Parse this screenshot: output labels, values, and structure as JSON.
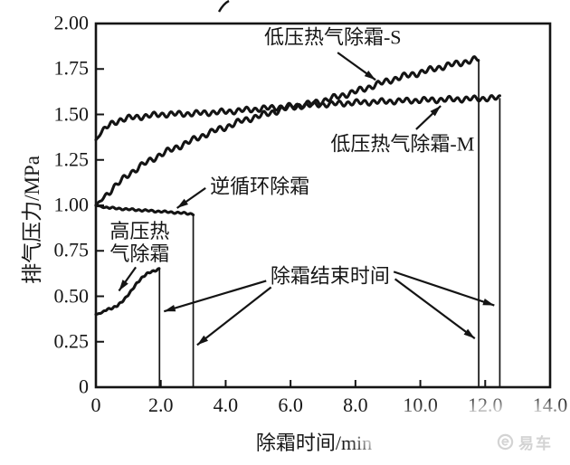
{
  "watermark": {
    "brand": "易车"
  },
  "chart_data": {
    "type": "line",
    "title": "",
    "xlabel": "除霜时间/min",
    "ylabel": "排气压力/MPa",
    "xlim": [
      0,
      14
    ],
    "ylim": [
      0,
      2.0
    ],
    "grid": false,
    "legend_position": "none",
    "line_color": "#141414",
    "x_ticks": [
      {
        "v": 0,
        "label": "0"
      },
      {
        "v": 2,
        "label": "2.0"
      },
      {
        "v": 4,
        "label": "4.0"
      },
      {
        "v": 6,
        "label": "6.0"
      },
      {
        "v": 8,
        "label": "8.0"
      },
      {
        "v": 10,
        "label": "10.0"
      },
      {
        "v": 12,
        "label": "12.0"
      },
      {
        "v": 14,
        "label": "14.0"
      }
    ],
    "y_ticks": [
      {
        "v": 0,
        "label": "0"
      },
      {
        "v": 0.25,
        "label": "0.25"
      },
      {
        "v": 0.5,
        "label": "0.50"
      },
      {
        "v": 0.75,
        "label": "0.75"
      },
      {
        "v": 1.0,
        "label": "1.00"
      },
      {
        "v": 1.25,
        "label": "1.25"
      },
      {
        "v": 1.5,
        "label": "1.50"
      },
      {
        "v": 1.75,
        "label": "1.75"
      },
      {
        "v": 2.0,
        "label": "2.00"
      }
    ],
    "series": [
      {
        "id": "low-pressure-hot-gas-s",
        "name": "低压热气除霜-S",
        "defrost_end_time_min": 11.8,
        "end_pressure_mpa": 1.8,
        "drop_to_zero": true,
        "wiggle_amp": 0.013,
        "wiggle_wavelength": 0.27,
        "points": [
          [
            0,
            1.0
          ],
          [
            0.5,
            1.09
          ],
          [
            1,
            1.17
          ],
          [
            1.5,
            1.23
          ],
          [
            2,
            1.28
          ],
          [
            2.5,
            1.32
          ],
          [
            3,
            1.36
          ],
          [
            3.5,
            1.4
          ],
          [
            4,
            1.43
          ],
          [
            4.5,
            1.465
          ],
          [
            5,
            1.49
          ],
          [
            5.5,
            1.515
          ],
          [
            6,
            1.54
          ],
          [
            6.5,
            1.555
          ],
          [
            7,
            1.575
          ],
          [
            7.5,
            1.6
          ],
          [
            8,
            1.625
          ],
          [
            8.5,
            1.655
          ],
          [
            9,
            1.685
          ],
          [
            9.5,
            1.71
          ],
          [
            10,
            1.73
          ],
          [
            10.5,
            1.755
          ],
          [
            11,
            1.775
          ],
          [
            11.4,
            1.79
          ],
          [
            11.8,
            1.805
          ]
        ]
      },
      {
        "id": "low-pressure-hot-gas-m",
        "name": "低压热气除霜-M",
        "defrost_end_time_min": 12.45,
        "end_pressure_mpa": 1.59,
        "drop_to_zero": true,
        "wiggle_amp": 0.012,
        "wiggle_wavelength": 0.26,
        "points": [
          [
            0,
            1.36
          ],
          [
            0.25,
            1.42
          ],
          [
            0.5,
            1.45
          ],
          [
            0.75,
            1.47
          ],
          [
            1,
            1.48
          ],
          [
            1.5,
            1.49
          ],
          [
            2,
            1.5
          ],
          [
            3,
            1.505
          ],
          [
            4,
            1.515
          ],
          [
            5,
            1.53
          ],
          [
            6,
            1.545
          ],
          [
            7,
            1.555
          ],
          [
            8,
            1.565
          ],
          [
            9,
            1.572
          ],
          [
            10,
            1.578
          ],
          [
            11,
            1.583
          ],
          [
            12,
            1.588
          ],
          [
            12.45,
            1.59
          ]
        ]
      },
      {
        "id": "reverse-cycle",
        "name": "逆循环除霜",
        "defrost_end_time_min": 3.0,
        "end_pressure_mpa": 0.95,
        "drop_to_zero": true,
        "wiggle_amp": 0.004,
        "wiggle_wavelength": 0.2,
        "points": [
          [
            0,
            1.0
          ],
          [
            0.25,
            0.99
          ],
          [
            0.5,
            0.985
          ],
          [
            1,
            0.978
          ],
          [
            1.5,
            0.972
          ],
          [
            2,
            0.966
          ],
          [
            2.5,
            0.96
          ],
          [
            3,
            0.952
          ]
        ]
      },
      {
        "id": "high-pressure-hot-gas",
        "name": "高压热气除霜",
        "defrost_end_time_min": 1.96,
        "end_pressure_mpa": 0.65,
        "drop_to_zero": true,
        "wiggle_amp": 0.004,
        "wiggle_wavelength": 0.17,
        "points": [
          [
            0,
            0.4
          ],
          [
            0.2,
            0.41
          ],
          [
            0.35,
            0.43
          ],
          [
            0.5,
            0.435
          ],
          [
            0.65,
            0.445
          ],
          [
            0.8,
            0.47
          ],
          [
            0.95,
            0.5
          ],
          [
            1.1,
            0.53
          ],
          [
            1.25,
            0.57
          ],
          [
            1.4,
            0.6
          ],
          [
            1.55,
            0.62
          ],
          [
            1.7,
            0.635
          ],
          [
            1.96,
            0.65
          ]
        ]
      }
    ],
    "annotations": [
      {
        "id": "label-low-pressure-s",
        "lines": [
          "低压热气除霜-S"
        ],
        "t": 7.3,
        "p": 1.92,
        "arrows": [
          [
            7.45,
            1.84,
            8.62,
            1.69
          ]
        ]
      },
      {
        "id": "label-low-pressure-m",
        "lines": [
          "低压热气除霜-M"
        ],
        "t": 9.45,
        "p": 1.335,
        "arrows": [
          [
            9.87,
            1.418,
            10.63,
            1.547
          ]
        ]
      },
      {
        "id": "label-reverse-cycle",
        "lines": [
          "逆循环除霜"
        ],
        "t": 5.05,
        "p": 1.1,
        "arrows": [
          [
            3.38,
            1.095,
            2.5,
            0.985
          ]
        ]
      },
      {
        "id": "label-high-pressure",
        "lines": [
          "高压热",
          "气除霜"
        ],
        "t": 1.35,
        "p": 0.79,
        "arrows": [
          [
            1.23,
            0.66,
            0.71,
            0.53
          ]
        ]
      },
      {
        "id": "label-defrost-end-time",
        "lines": [
          "除霜结束时间"
        ],
        "t": 7.22,
        "p": 0.607,
        "arrows": [
          [
            5.25,
            0.585,
            2.1,
            0.417
          ],
          [
            5.4,
            0.55,
            3.12,
            0.232
          ],
          [
            9.18,
            0.635,
            12.28,
            0.45
          ],
          [
            9.22,
            0.595,
            11.68,
            0.268
          ]
        ]
      }
    ]
  }
}
